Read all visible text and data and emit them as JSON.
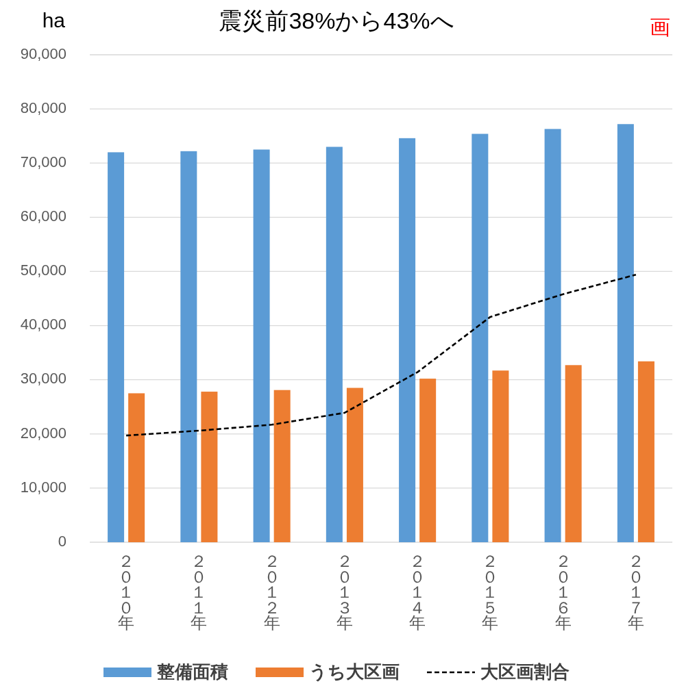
{
  "chart_data": {
    "type": "bar",
    "title": "震災前38%から43%へ",
    "ylabel": "ha",
    "annotations": [
      "画"
    ],
    "categories": [
      "２０１０年",
      "２０１１年",
      "２０１２年",
      "２０１３年",
      "２０１４年",
      "２０１５年",
      "２０１６年",
      "２０１７年"
    ],
    "ylim": [
      0,
      90000
    ],
    "yticks": [
      0,
      {
        "value": 10000,
        "label": "10,000"
      },
      {
        "value": 20000,
        "label": "20,000"
      },
      {
        "value": 30000,
        "label": "30,000"
      },
      {
        "value": 40000,
        "label": "40,000"
      },
      {
        "value": 50000,
        "label": "50,000"
      },
      {
        "value": 60000,
        "label": "60,000"
      },
      {
        "value": 70000,
        "label": "70,000"
      },
      {
        "value": 80000,
        "label": "80,000"
      },
      {
        "value": 90000,
        "label": "90,000"
      }
    ],
    "grid": "y",
    "legend": "bottom",
    "line_style": "dashed",
    "series": [
      {
        "name": "整備面積",
        "color": "#5b9bd5",
        "values": [
          72000,
          72200,
          72500,
          73000,
          74600,
          75400,
          76300,
          77200
        ]
      },
      {
        "name": "うち大区画",
        "color": "#ed7d31",
        "values": [
          27500,
          27800,
          28100,
          28500,
          30200,
          31700,
          32700,
          33400
        ]
      },
      {
        "name": "大区画割合",
        "type": "line",
        "color": "#000000",
        "values": [
          19700,
          20600,
          21700,
          23900,
          31400,
          41600,
          45800,
          49400
        ]
      }
    ]
  }
}
